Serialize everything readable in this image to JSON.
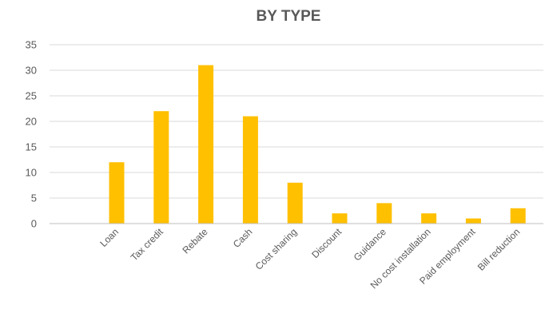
{
  "chart_data": {
    "type": "bar",
    "title": "BY TYPE",
    "xlabel": "",
    "ylabel": "",
    "categories": [
      "Loan",
      "Tax credit",
      "Rebate",
      "Cash",
      "Cost sharing",
      "Discount",
      "Guidance",
      "No cost installation",
      "Paid employment",
      "Bill reduction"
    ],
    "values": [
      12,
      22,
      31,
      21,
      8,
      2,
      4,
      2,
      1,
      3
    ],
    "yticks": [
      0,
      5,
      10,
      15,
      20,
      25,
      30,
      35
    ],
    "ylim": [
      0,
      35
    ],
    "grid": true,
    "legend": "none",
    "bar_color": "#FFC000"
  }
}
